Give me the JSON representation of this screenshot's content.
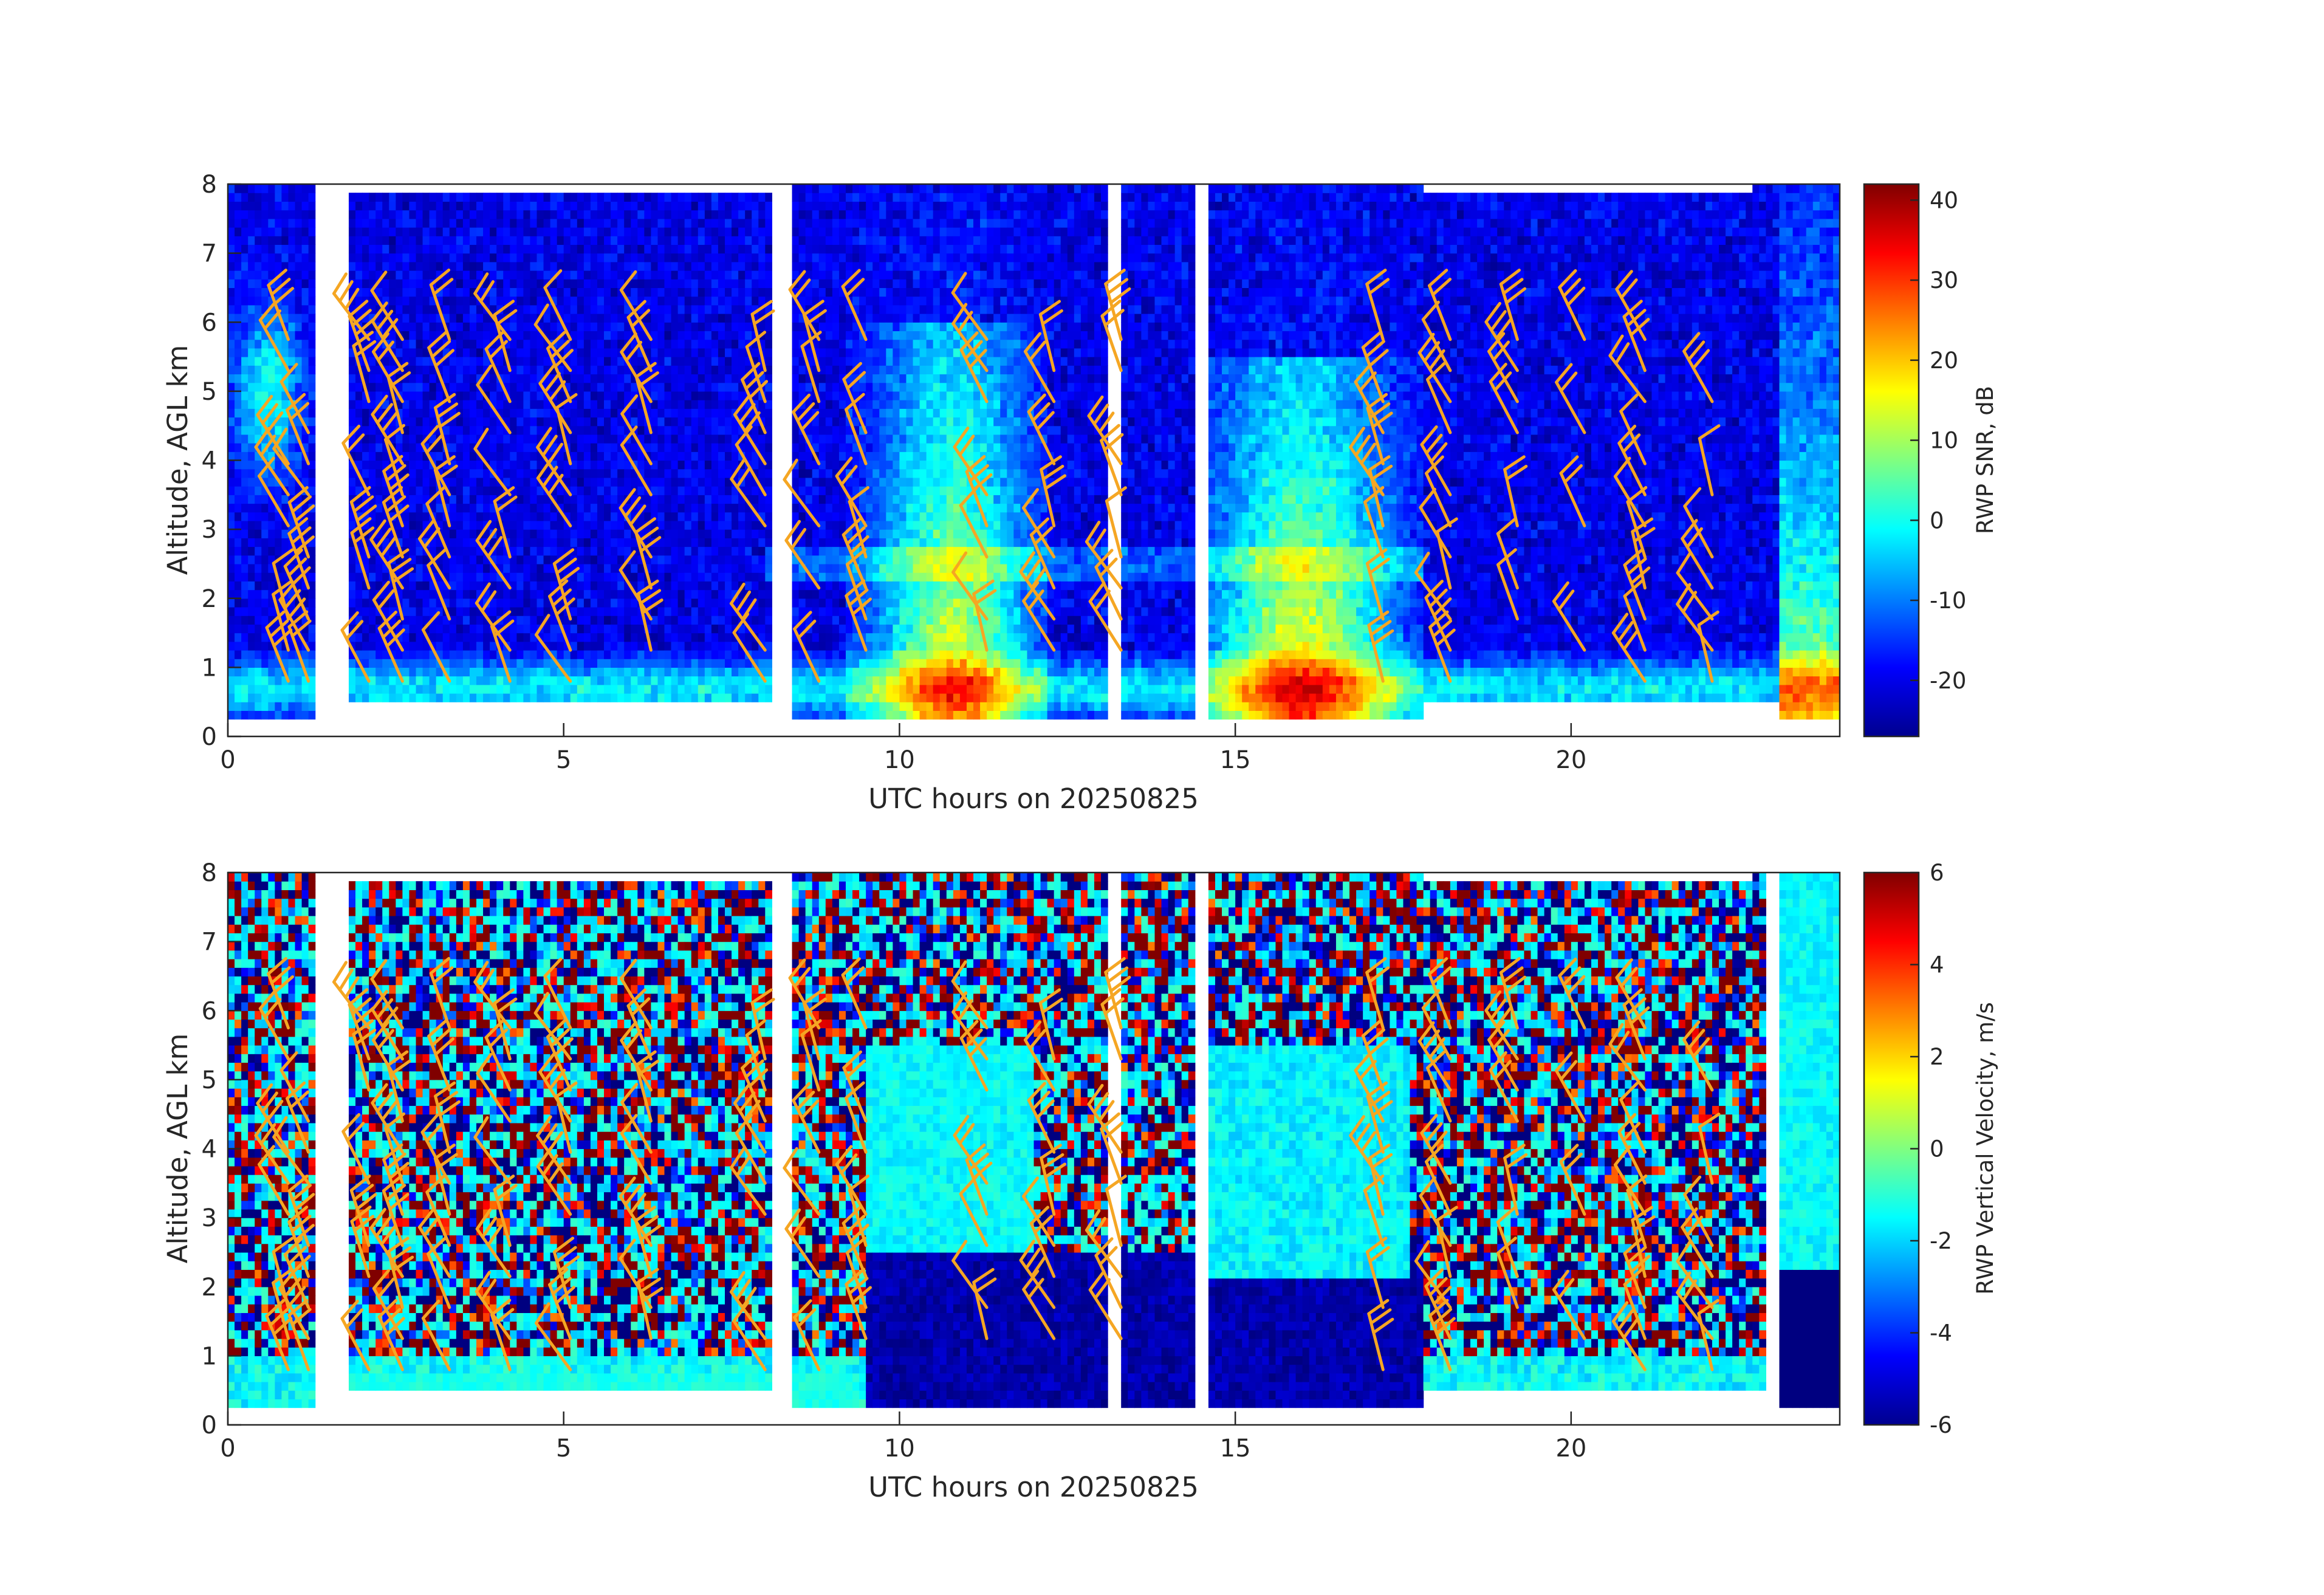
{
  "chart_data": [
    {
      "type": "heatmap",
      "title": "",
      "xlabel": "UTC hours on 20250825",
      "ylabel": "Altitude, AGL km",
      "xlim": [
        0,
        24
      ],
      "ylim": [
        0,
        8
      ],
      "x_ticks": [
        "0",
        "5",
        "10",
        "15",
        "20"
      ],
      "y_ticks": [
        "0",
        "1",
        "2",
        "3",
        "4",
        "5",
        "6",
        "7",
        "8"
      ],
      "colorbar": {
        "label": "RWP SNR, dB",
        "colormap": "jet",
        "range": [
          -27,
          42
        ],
        "ticks": [
          "-20",
          "-10",
          "0",
          "10",
          "20",
          "30",
          "40"
        ]
      },
      "data_gaps_hours": [
        [
          1.3,
          1.8
        ],
        [
          8.15,
          8.4
        ],
        [
          13.15,
          13.35
        ],
        [
          14.45,
          14.6
        ]
      ],
      "overlay": "wind barbs",
      "overlay_color": "#f5a623"
    },
    {
      "type": "heatmap",
      "title": "",
      "xlabel": "UTC hours on 20250825",
      "ylabel": "Altitude, AGL km",
      "xlim": [
        0,
        24
      ],
      "ylim": [
        0,
        8
      ],
      "x_ticks": [
        "0",
        "5",
        "10",
        "15",
        "20"
      ],
      "y_ticks": [
        "0",
        "1",
        "2",
        "3",
        "4",
        "5",
        "6",
        "7",
        "8"
      ],
      "colorbar": {
        "label": "RWP Vertical Velocity, m/s",
        "colormap": "jet",
        "range": [
          -6,
          6
        ],
        "ticks": [
          "-6",
          "-4",
          "-2",
          "0",
          "2",
          "4",
          "6"
        ]
      },
      "data_gaps_hours": [
        [
          1.3,
          1.8
        ],
        [
          8.15,
          8.4
        ],
        [
          13.15,
          13.35
        ],
        [
          14.45,
          14.6
        ],
        [
          22.9,
          23.1
        ]
      ],
      "overlay": "wind barbs",
      "overlay_color": "#f5a623"
    }
  ]
}
